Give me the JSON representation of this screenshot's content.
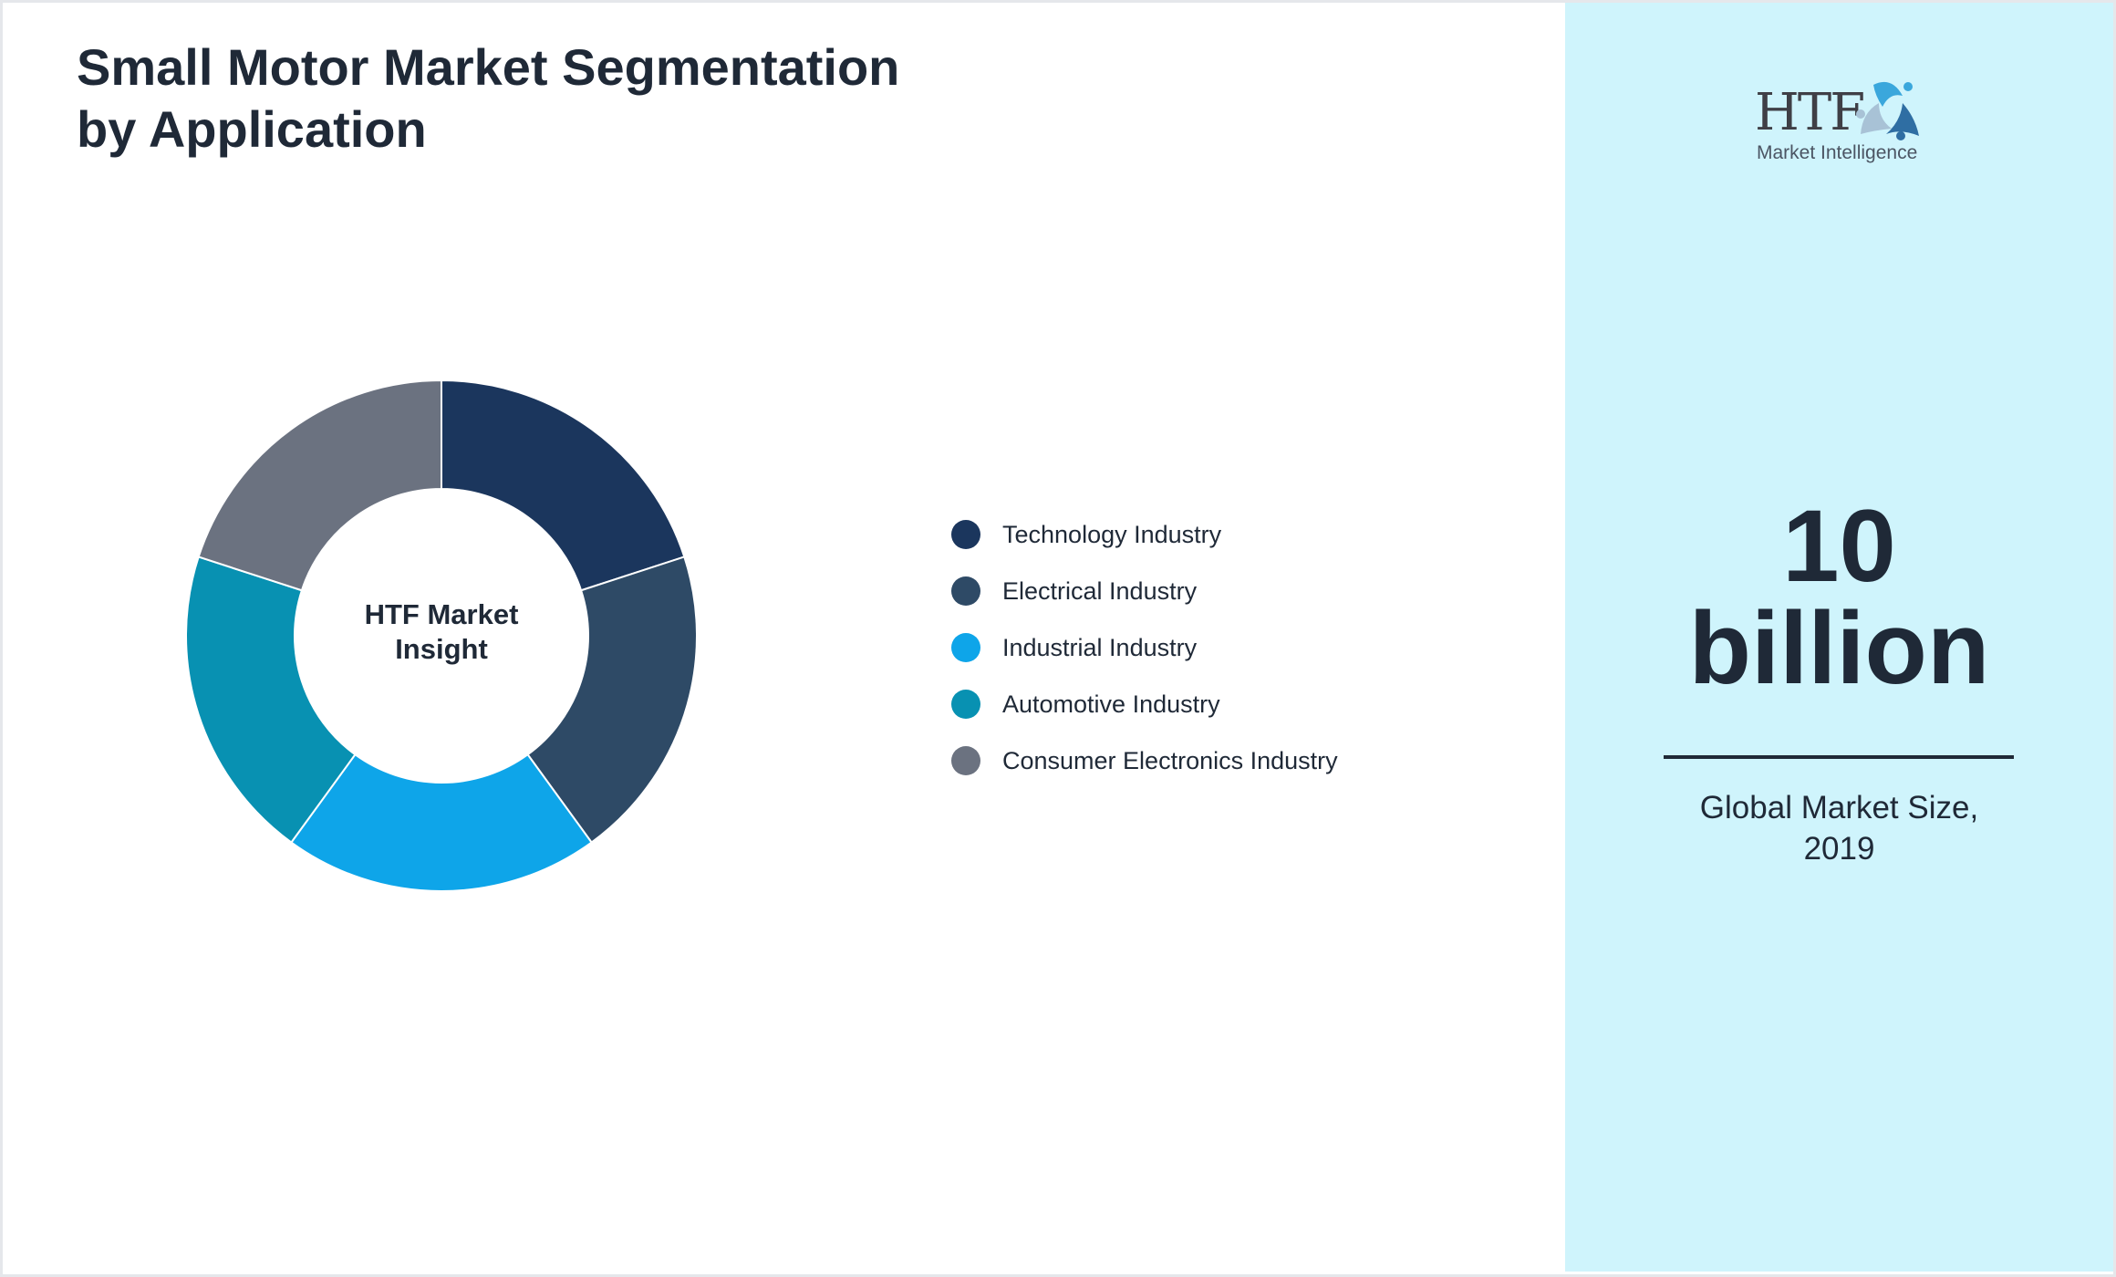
{
  "title_line1": "Small Motor Market Segmentation",
  "title_line2": "by Application",
  "chart_data": {
    "type": "pie",
    "variant": "donut",
    "center_label_line1": "HTF Market",
    "center_label_line2": "Insight",
    "categories": [
      "Technology Industry",
      "Electrical Industry",
      "Industrial Industry",
      "Automotive Industry",
      "Consumer Electronics Industry"
    ],
    "values": [
      20,
      20,
      20,
      20,
      20
    ],
    "colors": [
      "#1b365d",
      "#2e4a66",
      "#0ea5e9",
      "#0891b2",
      "#6b7280"
    ],
    "legend_position": "right"
  },
  "panel": {
    "logo_text": "HTF",
    "logo_subtext": "Market Intelligence",
    "value_line1": "10",
    "value_line2": "billion",
    "caption_line1": "Global Market Size,",
    "caption_line2": "2019",
    "background": "#cff4fc"
  }
}
